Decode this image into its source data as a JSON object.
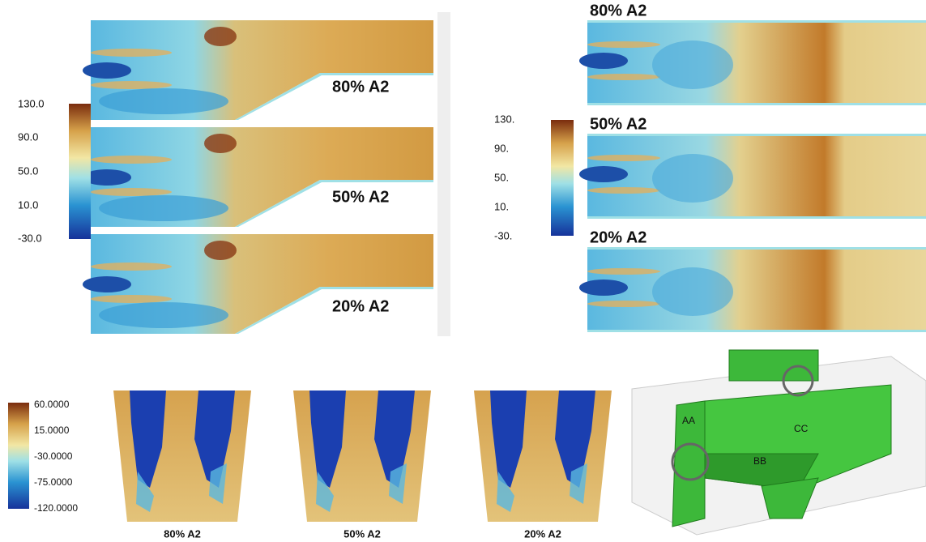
{
  "top_left": {
    "colorbar_ticks": [
      "130.0",
      "90.0",
      "50.0",
      "10.0",
      "-30.0"
    ],
    "labels": [
      "80% A2",
      "50% A2",
      "20% A2"
    ]
  },
  "top_right": {
    "colorbar_ticks": [
      "130.",
      "90.",
      "50.",
      "10.",
      "-30."
    ],
    "labels": [
      "80% A2",
      "50% A2",
      "20% A2"
    ]
  },
  "bottom": {
    "colorbar_ticks": [
      "60.0000",
      "15.0000",
      "-30.0000",
      "-75.0000",
      "-120.0000"
    ],
    "labels": [
      "80% A2",
      "50% A2",
      "20% A2"
    ]
  },
  "model": {
    "labels": [
      "AA",
      "BB",
      "CC"
    ]
  }
}
